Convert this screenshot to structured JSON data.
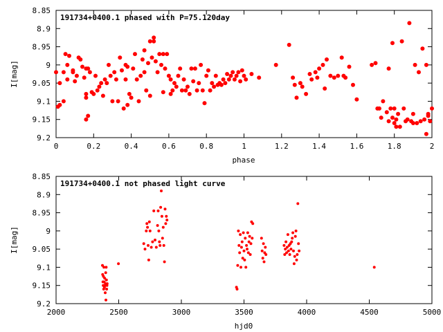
{
  "chart_data": [
    {
      "type": "scatter",
      "title": "191734+0400.1 phased with P=75.120day",
      "xlabel": "phase",
      "ylabel": "I[mag]",
      "xlim": [
        0,
        2
      ],
      "ylim": [
        8.85,
        9.2
      ],
      "y_inverted": true,
      "xticks": [
        "0",
        "0.2",
        "0.4",
        "0.6",
        "0.8",
        "1",
        "1.2",
        "1.4",
        "1.6",
        "1.8",
        "2"
      ],
      "yticks": [
        "8.85",
        "8.9",
        "8.95",
        "9",
        "9.05",
        "9.1",
        "9.15",
        "9.2"
      ],
      "marker_color": "#ff0000",
      "points": [
        [
          0.0,
          9.02
        ],
        [
          0.01,
          9.115
        ],
        [
          0.02,
          9.05
        ],
        [
          0.02,
          9.11
        ],
        [
          0.04,
          9.1
        ],
        [
          0.04,
          9.02
        ],
        [
          0.05,
          8.97
        ],
        [
          0.06,
          9.0
        ],
        [
          0.06,
          9.04
        ],
        [
          0.07,
          8.975
        ],
        [
          0.09,
          9.015
        ],
        [
          0.09,
          9.02
        ],
        [
          0.1,
          9.045
        ],
        [
          0.11,
          9.03
        ],
        [
          0.12,
          8.98
        ],
        [
          0.13,
          8.985
        ],
        [
          0.14,
          9.005
        ],
        [
          0.15,
          9.035
        ],
        [
          0.16,
          9.01
        ],
        [
          0.16,
          9.15
        ],
        [
          0.17,
          9.01
        ],
        [
          0.16,
          9.08
        ],
        [
          0.16,
          9.09
        ],
        [
          0.17,
          9.14
        ],
        [
          0.18,
          9.02
        ],
        [
          0.19,
          9.075
        ],
        [
          0.2,
          9.08
        ],
        [
          0.21,
          9.03
        ],
        [
          0.22,
          9.07
        ],
        [
          0.23,
          9.06
        ],
        [
          0.24,
          9.05
        ],
        [
          0.25,
          9.085
        ],
        [
          0.26,
          9.04
        ],
        [
          0.27,
          9.05
        ],
        [
          0.28,
          9.0
        ],
        [
          0.29,
          9.03
        ],
        [
          0.3,
          9.1
        ],
        [
          0.31,
          9.02
        ],
        [
          0.32,
          9.04
        ],
        [
          0.33,
          9.1
        ],
        [
          0.34,
          8.98
        ],
        [
          0.35,
          9.015
        ],
        [
          0.36,
          9.12
        ],
        [
          0.37,
          9.04
        ],
        [
          0.37,
          9.0
        ],
        [
          0.38,
          9.005
        ],
        [
          0.38,
          9.11
        ],
        [
          0.39,
          9.08
        ],
        [
          0.4,
          9.09
        ],
        [
          0.41,
          9.01
        ],
        [
          0.42,
          8.97
        ],
        [
          0.43,
          9.04
        ],
        [
          0.44,
          9.1
        ],
        [
          0.45,
          9.03
        ],
        [
          0.46,
          8.985
        ],
        [
          0.47,
          9.02
        ],
        [
          0.47,
          8.96
        ],
        [
          0.48,
          9.07
        ],
        [
          0.49,
          8.995
        ],
        [
          0.5,
          8.935
        ],
        [
          0.5,
          9.085
        ],
        [
          0.51,
          8.98
        ],
        [
          0.52,
          8.925
        ],
        [
          0.52,
          8.935
        ],
        [
          0.53,
          8.99
        ],
        [
          0.54,
          9.02
        ],
        [
          0.55,
          8.97
        ],
        [
          0.56,
          9.0
        ],
        [
          0.57,
          9.075
        ],
        [
          0.57,
          8.97
        ],
        [
          0.58,
          9.01
        ],
        [
          0.59,
          8.97
        ],
        [
          0.6,
          9.03
        ],
        [
          0.61,
          9.04
        ],
        [
          0.61,
          9.08
        ],
        [
          0.62,
          9.07
        ],
        [
          0.63,
          9.05
        ],
        [
          0.64,
          9.06
        ],
        [
          0.65,
          9.03
        ],
        [
          0.66,
          9.01
        ],
        [
          0.67,
          9.07
        ],
        [
          0.68,
          9.04
        ],
        [
          0.69,
          9.07
        ],
        [
          0.7,
          9.06
        ],
        [
          0.71,
          9.08
        ],
        [
          0.72,
          9.01
        ],
        [
          0.73,
          9.045
        ],
        [
          0.74,
          9.01
        ],
        [
          0.75,
          9.07
        ],
        [
          0.76,
          9.05
        ],
        [
          0.77,
          9.0
        ],
        [
          0.78,
          9.07
        ],
        [
          0.79,
          9.105
        ],
        [
          0.8,
          9.03
        ],
        [
          0.81,
          9.015
        ],
        [
          0.82,
          9.07
        ],
        [
          0.83,
          9.05
        ],
        [
          0.84,
          9.06
        ],
        [
          0.85,
          9.03
        ],
        [
          0.86,
          9.055
        ],
        [
          0.87,
          9.05
        ],
        [
          0.88,
          9.055
        ],
        [
          0.89,
          9.04
        ],
        [
          0.9,
          9.05
        ],
        [
          0.91,
          9.025
        ],
        [
          0.92,
          9.04
        ],
        [
          0.93,
          9.03
        ],
        [
          0.94,
          9.02
        ],
        [
          0.95,
          9.04
        ],
        [
          0.96,
          9.03
        ],
        [
          0.97,
          9.02
        ],
        [
          0.98,
          9.045
        ],
        [
          0.99,
          9.015
        ],
        [
          1.0,
          9.03
        ],
        [
          1.01,
          9.04
        ],
        [
          1.04,
          9.025
        ],
        [
          1.08,
          9.035
        ],
        [
          1.17,
          9.0
        ],
        [
          1.24,
          8.945
        ],
        [
          1.26,
          9.035
        ],
        [
          1.27,
          9.055
        ],
        [
          1.28,
          9.09
        ],
        [
          1.3,
          9.05
        ],
        [
          1.31,
          9.06
        ],
        [
          1.33,
          9.08
        ],
        [
          1.35,
          9.025
        ],
        [
          1.36,
          9.04
        ],
        [
          1.38,
          9.02
        ],
        [
          1.39,
          9.035
        ],
        [
          1.4,
          9.01
        ],
        [
          1.42,
          9.0
        ],
        [
          1.43,
          9.065
        ],
        [
          1.44,
          8.985
        ],
        [
          1.46,
          9.03
        ],
        [
          1.48,
          9.035
        ],
        [
          1.5,
          9.03
        ],
        [
          1.52,
          8.98
        ],
        [
          1.53,
          9.03
        ],
        [
          1.54,
          9.035
        ],
        [
          1.56,
          9.005
        ],
        [
          1.58,
          9.055
        ],
        [
          1.6,
          9.095
        ],
        [
          1.68,
          9.0
        ],
        [
          1.7,
          8.995
        ],
        [
          1.71,
          9.12
        ],
        [
          1.72,
          9.12
        ],
        [
          1.73,
          9.145
        ],
        [
          1.74,
          9.1
        ],
        [
          1.76,
          9.13
        ],
        [
          1.77,
          9.01
        ],
        [
          1.77,
          9.155
        ],
        [
          1.78,
          9.12
        ],
        [
          1.79,
          8.94
        ],
        [
          1.79,
          9.145
        ],
        [
          1.8,
          9.16
        ],
        [
          1.8,
          9.12
        ],
        [
          1.81,
          9.15
        ],
        [
          1.81,
          9.17
        ],
        [
          1.82,
          9.135
        ],
        [
          1.83,
          9.17
        ],
        [
          1.84,
          8.935
        ],
        [
          1.85,
          9.12
        ],
        [
          1.86,
          9.155
        ],
        [
          1.87,
          9.15
        ],
        [
          1.88,
          8.885
        ],
        [
          1.89,
          9.155
        ],
        [
          1.9,
          9.135
        ],
        [
          1.9,
          9.16
        ],
        [
          1.91,
          9.0
        ],
        [
          1.92,
          9.16
        ],
        [
          1.93,
          9.02
        ],
        [
          1.94,
          9.155
        ],
        [
          1.95,
          8.955
        ],
        [
          1.96,
          9.15
        ],
        [
          1.97,
          9.19
        ],
        [
          1.97,
          9.0
        ],
        [
          1.98,
          9.135
        ],
        [
          1.98,
          9.14
        ],
        [
          1.99,
          9.155
        ],
        [
          2.0,
          9.12
        ]
      ]
    },
    {
      "type": "scatter",
      "title": "191734+0400.1 not phased light curve",
      "xlabel": "hjd0",
      "ylabel": "I[mag]",
      "xlim": [
        2000,
        5000
      ],
      "ylim": [
        8.85,
        9.2
      ],
      "y_inverted": true,
      "xticks": [
        "2000",
        "2500",
        "3000",
        "3500",
        "4000",
        "4500",
        "5000"
      ],
      "yticks": [
        "8.85",
        "8.9",
        "8.95",
        "9",
        "9.05",
        "9.1",
        "9.15",
        "9.2"
      ],
      "marker_color": "#ff0000",
      "points": [
        [
          2370,
          9.095
        ],
        [
          2372,
          9.12
        ],
        [
          2374,
          9.14
        ],
        [
          2376,
          9.15
        ],
        [
          2378,
          9.125
        ],
        [
          2380,
          9.16
        ],
        [
          2382,
          9.1
        ],
        [
          2384,
          9.14
        ],
        [
          2386,
          9.155
        ],
        [
          2388,
          9.13
        ],
        [
          2390,
          9.15
        ],
        [
          2392,
          9.17
        ],
        [
          2394,
          9.145
        ],
        [
          2396,
          9.115
        ],
        [
          2398,
          9.19
        ],
        [
          2400,
          9.1
        ],
        [
          2402,
          9.135
        ],
        [
          2404,
          9.16
        ],
        [
          2406,
          9.15
        ],
        [
          2408,
          9.145
        ],
        [
          2498,
          9.09
        ],
        [
          2700,
          9.035
        ],
        [
          2710,
          9.05
        ],
        [
          2720,
          9.0
        ],
        [
          2725,
          8.98
        ],
        [
          2730,
          8.99
        ],
        [
          2735,
          9.04
        ],
        [
          2740,
          9.08
        ],
        [
          2745,
          8.975
        ],
        [
          2750,
          9.0
        ],
        [
          2760,
          9.045
        ],
        [
          2770,
          9.03
        ],
        [
          2780,
          8.945
        ],
        [
          2790,
          9.025
        ],
        [
          2800,
          9.045
        ],
        [
          2810,
          8.985
        ],
        [
          2815,
          8.945
        ],
        [
          2820,
          9.0
        ],
        [
          2825,
          9.03
        ],
        [
          2830,
          9.04
        ],
        [
          2835,
          8.935
        ],
        [
          2840,
          8.89
        ],
        [
          2845,
          8.96
        ],
        [
          2850,
          9.02
        ],
        [
          2855,
          8.99
        ],
        [
          2860,
          9.04
        ],
        [
          2865,
          9.085
        ],
        [
          2870,
          8.94
        ],
        [
          2875,
          8.98
        ],
        [
          2880,
          8.96
        ],
        [
          2885,
          8.97
        ],
        [
          3440,
          9.155
        ],
        [
          3445,
          9.16
        ],
        [
          3450,
          9.095
        ],
        [
          3455,
          9.0
        ],
        [
          3460,
          9.04
        ],
        [
          3465,
          9.06
        ],
        [
          3470,
          9.01
        ],
        [
          3475,
          9.1
        ],
        [
          3480,
          9.045
        ],
        [
          3485,
          9.03
        ],
        [
          3490,
          9.075
        ],
        [
          3495,
          9.005
        ],
        [
          3500,
          9.055
        ],
        [
          3505,
          9.08
        ],
        [
          3510,
          9.02
        ],
        [
          3515,
          9.1
        ],
        [
          3520,
          9.04
        ],
        [
          3525,
          9.05
        ],
        [
          3530,
          9.005
        ],
        [
          3535,
          9.06
        ],
        [
          3540,
          9.03
        ],
        [
          3545,
          9.015
        ],
        [
          3550,
          9.065
        ],
        [
          3555,
          9.035
        ],
        [
          3560,
          8.975
        ],
        [
          3565,
          9.02
        ],
        [
          3570,
          8.98
        ],
        [
          3640,
          9.02
        ],
        [
          3645,
          9.055
        ],
        [
          3650,
          9.075
        ],
        [
          3655,
          9.035
        ],
        [
          3660,
          9.085
        ],
        [
          3665,
          9.06
        ],
        [
          3670,
          9.045
        ],
        [
          3675,
          9.065
        ],
        [
          3820,
          9.04
        ],
        [
          3825,
          9.065
        ],
        [
          3830,
          9.05
        ],
        [
          3835,
          9.03
        ],
        [
          3840,
          9.06
        ],
        [
          3845,
          9.045
        ],
        [
          3850,
          9.01
        ],
        [
          3855,
          9.055
        ],
        [
          3860,
          9.04
        ],
        [
          3865,
          9.065
        ],
        [
          3870,
          9.035
        ],
        [
          3875,
          9.05
        ],
        [
          3880,
          9.03
        ],
        [
          3885,
          9.02
        ],
        [
          3890,
          9.005
        ],
        [
          3895,
          9.055
        ],
        [
          3900,
          9.09
        ],
        [
          3905,
          9.07
        ],
        [
          3910,
          9.015
        ],
        [
          3915,
          9.0
        ],
        [
          3920,
          9.08
        ],
        [
          3925,
          9.065
        ],
        [
          3930,
          8.925
        ],
        [
          3935,
          9.035
        ],
        [
          3940,
          9.055
        ],
        [
          4540,
          9.1
        ]
      ]
    }
  ]
}
